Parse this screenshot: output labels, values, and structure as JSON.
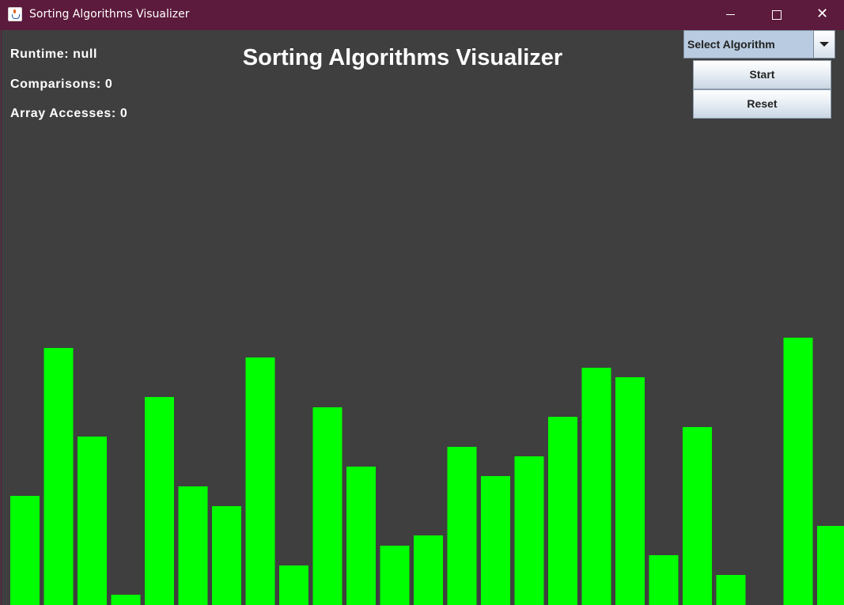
{
  "window": {
    "title": "Sorting Algorithms Visualizer"
  },
  "stats": {
    "runtime": "Runtime: null",
    "comparisons": "Comparisons: 0",
    "array_accesses": "Array Accesses: 0"
  },
  "heading": "Sorting Algorithms Visualizer",
  "controls": {
    "algorithm_select": "Select Algorithm",
    "start_label": "Start",
    "reset_label": "Reset"
  },
  "colors": {
    "bar": "#00ff00",
    "background": "#3f3f3f",
    "titlebar": "#5c1a3c"
  },
  "array_values": [
    138,
    325,
    213,
    13,
    263,
    150,
    125,
    313,
    50,
    250,
    175,
    75,
    88,
    200,
    163,
    188,
    238,
    300,
    288,
    63,
    225,
    38,
    0,
    338,
    100
  ]
}
